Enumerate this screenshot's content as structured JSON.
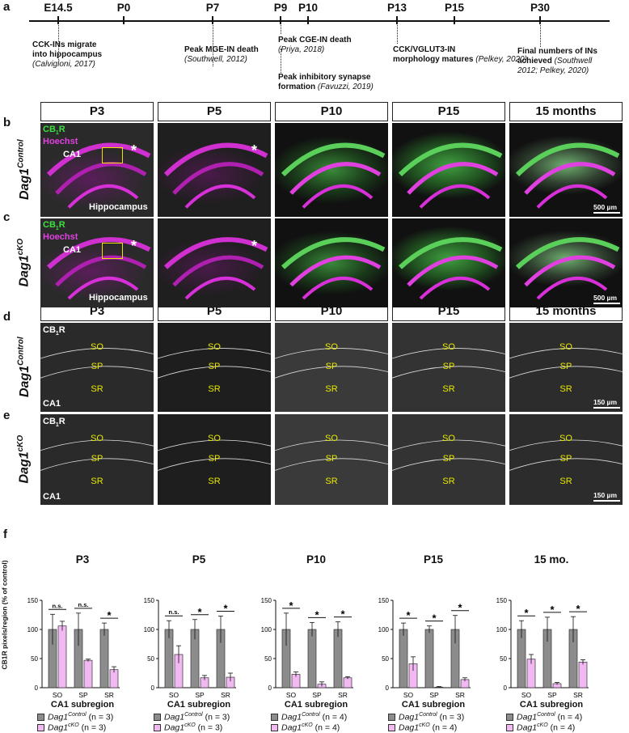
{
  "panel_labels": {
    "a": "a",
    "b": "b",
    "c": "c",
    "d": "d",
    "e": "e",
    "f": "f"
  },
  "timeline": {
    "ages": [
      "E14.5",
      "P0",
      "P7",
      "P9",
      "P10",
      "P13",
      "P15",
      "P30"
    ],
    "events": [
      {
        "line1": "CCK-INs migrate",
        "line2": "into hippocampus",
        "cite": "(Calvigioni, 2017)"
      },
      {
        "line1": "Peak MGE-IN death",
        "cite": "(Southwell, 2012)"
      },
      {
        "line1": "Peak CGE-IN death",
        "cite": "(Priya, 2018)"
      },
      {
        "line1": "Peak inhibitory synapse",
        "line2": "formation",
        "cite": "(Favuzzi, 2019)"
      },
      {
        "line1": "CCK/VGLUT3-IN",
        "line2": "morphology matures",
        "cite": "(Pelkey, 2020)"
      },
      {
        "line1": "Final numbers of INs",
        "line2": "achieved",
        "cite": "(Southwell",
        "cite2": "2012; Pelkey, 2020)"
      }
    ]
  },
  "headers": [
    "P3",
    "P5",
    "P10",
    "P15",
    "15 months"
  ],
  "genotypes": {
    "control": {
      "name": "Dag1",
      "sup": "Control"
    },
    "cko": {
      "name": "Dag1",
      "sup": "cKO"
    }
  },
  "low_mag": {
    "stain1": "CB",
    "stain1_sub": "1",
    "stain1_tail": "R",
    "stain2": "Hoechst",
    "region": "CA1",
    "structure": "Hippocampus",
    "asterisk": "*",
    "scale": "500 µm"
  },
  "high_mag": {
    "stain": "CB",
    "stain_sub": "1",
    "stain_tail": "R",
    "region": "CA1",
    "layers": [
      "SO",
      "SP",
      "SR"
    ],
    "scale": "150 µm"
  },
  "chart_ylabel": "CB1R pixels/region (% of control)",
  "chart_xlabel": "CA1 subregion",
  "colors": {
    "control": "#8c8c8c",
    "cko": "#f2b8f2",
    "control_hex_fill": "#8c8c8c"
  },
  "chart_data": [
    {
      "type": "bar",
      "title": "P3",
      "categories": [
        "SO",
        "SP",
        "SR"
      ],
      "ylim": [
        0,
        150
      ],
      "yticks": [
        0,
        50,
        100,
        150
      ],
      "xlabel": "CA1 subregion",
      "series": [
        {
          "name": "Dag1Control",
          "n": "(n = 3)",
          "values": [
            100,
            100,
            100
          ],
          "err": [
            26,
            28,
            11
          ]
        },
        {
          "name": "Dag1cKO",
          "n": "(n = 3)",
          "values": [
            106,
            47,
            31
          ],
          "err": [
            8,
            2,
            5
          ]
        }
      ],
      "significance": [
        "n.s.",
        "n.s.",
        "*"
      ]
    },
    {
      "type": "bar",
      "title": "P5",
      "categories": [
        "SO",
        "SP",
        "SR"
      ],
      "ylim": [
        0,
        150
      ],
      "yticks": [
        0,
        50,
        100,
        150
      ],
      "xlabel": "CA1 subregion",
      "series": [
        {
          "name": "Dag1Control",
          "n": "(n = 3)",
          "values": [
            100,
            100,
            100
          ],
          "err": [
            15,
            17,
            23
          ]
        },
        {
          "name": "Dag1cKO",
          "n": "(n = 3)",
          "values": [
            57,
            17,
            18
          ],
          "err": [
            15,
            4,
            7
          ]
        }
      ],
      "significance": [
        "n.s.",
        "*",
        "*"
      ]
    },
    {
      "type": "bar",
      "title": "P10",
      "categories": [
        "SO",
        "SP",
        "SR"
      ],
      "ylim": [
        0,
        150
      ],
      "yticks": [
        0,
        50,
        100,
        150
      ],
      "xlabel": "CA1 subregion",
      "series": [
        {
          "name": "Dag1Control",
          "n": "(n = 4)",
          "values": [
            100,
            100,
            100
          ],
          "err": [
            28,
            12,
            13
          ]
        },
        {
          "name": "Dag1cKO",
          "n": "(n = 4)",
          "values": [
            23,
            6,
            17
          ],
          "err": [
            4,
            4,
            2
          ]
        }
      ],
      "significance": [
        "*",
        "*",
        "*"
      ]
    },
    {
      "type": "bar",
      "title": "P15",
      "categories": [
        "SO",
        "SP",
        "SR"
      ],
      "ylim": [
        0,
        150
      ],
      "yticks": [
        0,
        50,
        100,
        150
      ],
      "xlabel": "CA1 subregion",
      "series": [
        {
          "name": "Dag1Control",
          "n": "(n = 3)",
          "values": [
            100,
            100,
            100
          ],
          "err": [
            11,
            6,
            24
          ]
        },
        {
          "name": "Dag1cKO",
          "n": "(n = 4)",
          "values": [
            41,
            1,
            14
          ],
          "err": [
            12,
            1,
            3
          ]
        }
      ],
      "significance": [
        "*",
        "*",
        "*"
      ]
    },
    {
      "type": "bar",
      "title": "15 mo.",
      "categories": [
        "SO",
        "SP",
        "SR"
      ],
      "ylim": [
        0,
        150
      ],
      "yticks": [
        0,
        50,
        100,
        150
      ],
      "xlabel": "CA1 subregion",
      "series": [
        {
          "name": "Dag1Control",
          "n": "(n = 4)",
          "values": [
            100,
            100,
            100
          ],
          "err": [
            15,
            21,
            22
          ]
        },
        {
          "name": "Dag1cKO",
          "n": "(n = 4)",
          "values": [
            49,
            7,
            44
          ],
          "err": [
            8,
            2,
            4
          ]
        }
      ],
      "significance": [
        "*",
        "*",
        "*"
      ]
    }
  ]
}
